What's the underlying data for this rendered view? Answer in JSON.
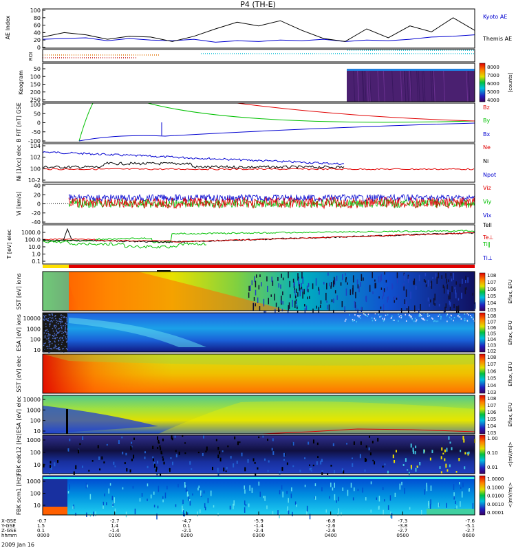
{
  "title": "P4 (TH-E)",
  "date_label": "2009 Jan 16",
  "colors": {
    "red": "#e00000",
    "green": "#00c000",
    "blue": "#0000d0",
    "black": "#000000",
    "cyan": "#00bcd4",
    "orange": "#e07000"
  },
  "chart_data": [
    {
      "name": "ae-index",
      "type": "line",
      "ylabel": "AE Index",
      "ylim": [
        0,
        100
      ],
      "yticks": [
        "0",
        "20",
        "40",
        "60",
        "80",
        "100"
      ],
      "legend": [
        "Kyoto AE",
        "Themis AE"
      ],
      "series": [
        {
          "name": "Kyoto AE",
          "color": "#0000d0",
          "x": [
            0,
            0.05,
            0.1,
            0.15,
            0.2,
            0.25,
            0.3,
            0.35,
            0.4,
            0.45,
            0.5,
            0.55,
            0.6,
            0.65,
            0.7,
            0.75,
            0.8,
            0.85,
            0.9,
            0.95,
            1.0
          ],
          "y": [
            22,
            24,
            26,
            18,
            24,
            20,
            18,
            22,
            14,
            18,
            16,
            20,
            18,
            22,
            16,
            20,
            18,
            22,
            28,
            30,
            34
          ]
        },
        {
          "name": "Themis AE",
          "color": "#000000",
          "x": [
            0,
            0.05,
            0.1,
            0.15,
            0.2,
            0.25,
            0.3,
            0.35,
            0.4,
            0.45,
            0.5,
            0.55,
            0.6,
            0.65,
            0.7,
            0.75,
            0.8,
            0.85,
            0.9,
            0.95,
            1.0
          ],
          "y": [
            28,
            40,
            34,
            22,
            30,
            28,
            16,
            30,
            50,
            68,
            58,
            72,
            46,
            24,
            16,
            50,
            26,
            58,
            42,
            80,
            46
          ]
        }
      ]
    },
    {
      "name": "roi",
      "type": "strip",
      "ylabel": "ROI"
    },
    {
      "name": "keogram",
      "type": "heatmap",
      "ylabel": "Keogram",
      "yticks": [
        "50",
        "100",
        "150",
        "200",
        "250"
      ],
      "legend": [
        "8000",
        "7000",
        "6000",
        "5000",
        "4000"
      ],
      "colorbar_label": "[counts]"
    },
    {
      "name": "b-field",
      "type": "line",
      "ylabel": "B FIT [nT] GSE",
      "ylim": [
        -100,
        100
      ],
      "yticks": [
        "-100",
        "-50",
        "0",
        "50",
        "100"
      ],
      "legend": [
        "Bz",
        "By",
        "Bx"
      ]
    },
    {
      "name": "density",
      "type": "line",
      "ylabel": "Ni [1/cc] elec",
      "yticks": [
        "10-2",
        "100",
        "102",
        "104"
      ],
      "legend": [
        "Ne",
        "Ni",
        "Npot"
      ]
    },
    {
      "name": "velocity",
      "type": "line",
      "ylabel": "Vi [km/s]",
      "ylim": [
        -40,
        40
      ],
      "yticks": [
        "-40",
        "-20",
        "0",
        "20",
        "40"
      ],
      "legend": [
        "Viz",
        "Viy",
        "Vix"
      ]
    },
    {
      "name": "temperature",
      "type": "line",
      "ylabel": "T [eV] elec",
      "yticks": [
        "0.1",
        "1.0",
        "10.0",
        "100.0",
        "1000.0"
      ],
      "legend": [
        "Tell",
        "Te⊥",
        "Ti‖",
        "Ti⊥"
      ]
    },
    {
      "name": "bar",
      "type": "strip"
    },
    {
      "name": "sst-ion",
      "type": "heatmap",
      "ylabel": "SST [eV] ions",
      "legend": [
        "108",
        "107",
        "106",
        "105",
        "104",
        "103"
      ],
      "colorbar_label": "Eflux, EFU"
    },
    {
      "name": "esa-ion",
      "type": "heatmap",
      "ylabel": "ESA [eV] ions",
      "yticks": [
        "10",
        "100",
        "1000",
        "10000"
      ],
      "legend": [
        "108",
        "107",
        "106",
        "105",
        "104",
        "103",
        "102"
      ],
      "colorbar_label": "Eflux, EFU"
    },
    {
      "name": "sst-elec",
      "type": "heatmap",
      "ylabel": "SST [eV] elec",
      "legend": [
        "108",
        "107",
        "106",
        "105",
        "104",
        "103"
      ],
      "colorbar_label": "Eflux, EFU"
    },
    {
      "name": "esa-elec",
      "type": "heatmap",
      "ylabel": "ESA [eV] elec",
      "yticks": [
        "10",
        "100",
        "1000",
        "10000"
      ],
      "legend": [
        "108",
        "107",
        "106",
        "105",
        "104",
        "103"
      ],
      "colorbar_label": "Eflux, EFU"
    },
    {
      "name": "fbk-e",
      "type": "heatmap",
      "ylabel": "FBK edc12 [Hz]",
      "yticks": [
        "10",
        "100",
        "1000"
      ],
      "legend": [
        "1.00",
        "0.10",
        "0.01"
      ],
      "colorbar_label": "<|mV/m|>"
    },
    {
      "name": "fbk-b",
      "type": "heatmap",
      "ylabel": "FBK scm1 [Hz]",
      "yticks": [
        "10",
        "100",
        "1000"
      ],
      "legend": [
        "1.0000",
        "0.1000",
        "0.0100",
        "0.0010",
        "0.0001"
      ],
      "colorbar_label": "<|mV/m|>"
    }
  ],
  "x_axis": {
    "row_labels": [
      "X-GSE",
      "Y-GSE",
      "Z-GSE",
      "hhmm"
    ],
    "ticks": [
      {
        "x": "-0.7",
        "y": "1.5",
        "z": "0.1",
        "t": "0000"
      },
      {
        "x": "-2.7",
        "y": "1.4",
        "z": "-1.4",
        "t": "0100"
      },
      {
        "x": "-4.7",
        "y": "0.1",
        "z": "-2.1",
        "t": "0200"
      },
      {
        "x": "-5.9",
        "y": "-1.4",
        "z": "-2.4",
        "t": "0300"
      },
      {
        "x": "-6.8",
        "y": "-2.6",
        "z": "-2.6",
        "t": "0400"
      },
      {
        "x": "-7.3",
        "y": "-3.8",
        "z": "-2.7",
        "t": "0500"
      },
      {
        "x": "-7.6",
        "y": "-5.1",
        "z": "-2.7",
        "t": "0600"
      }
    ]
  }
}
